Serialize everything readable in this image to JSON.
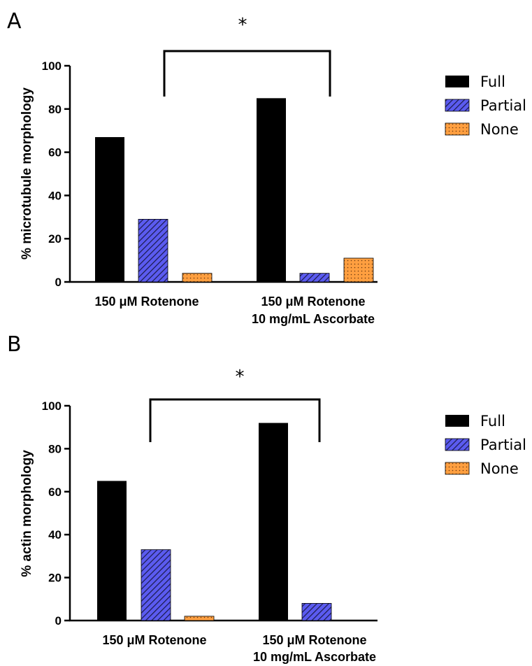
{
  "chart_data": [
    {
      "panel": "A",
      "type": "bar",
      "ylabel": "% microtubule morphology",
      "ylim": [
        0,
        100
      ],
      "yticks": [
        0,
        20,
        40,
        60,
        80,
        100
      ],
      "categories": [
        "150 μM Rotenone",
        "150 μM Rotenone\n10 mg/mL Ascorbate"
      ],
      "series": [
        {
          "name": "Full",
          "values": [
            67,
            85
          ]
        },
        {
          "name": "Partial",
          "values": [
            29,
            4
          ]
        },
        {
          "name": "None",
          "values": [
            4,
            11
          ]
        }
      ],
      "significance": "*",
      "legend_position": "right",
      "grid": false
    },
    {
      "panel": "B",
      "type": "bar",
      "ylabel": "% actin morphology",
      "ylim": [
        0,
        100
      ],
      "yticks": [
        0,
        20,
        40,
        60,
        80,
        100
      ],
      "categories": [
        "150 μM Rotenone",
        "150 μM Rotenone\n10 mg/mL Ascorbate"
      ],
      "series": [
        {
          "name": "Full",
          "values": [
            65,
            92
          ]
        },
        {
          "name": "Partial",
          "values": [
            33,
            8
          ]
        },
        {
          "name": "None",
          "values": [
            2,
            0
          ]
        }
      ],
      "significance": "*",
      "legend_position": "right",
      "grid": false
    }
  ],
  "colors": {
    "full": "#000000",
    "partial_fill": "#5b5bf0",
    "partial_hatch": "#1a1a4a",
    "none_fill": "#ff9f40",
    "none_dots": "#6b3a10"
  }
}
